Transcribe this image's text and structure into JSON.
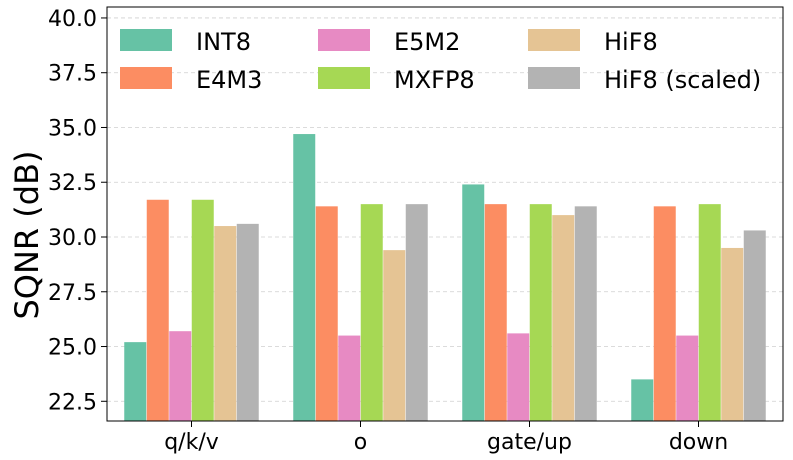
{
  "chart_data": {
    "type": "bar",
    "title": "",
    "xlabel": "",
    "ylabel": "SQNR (dB)",
    "ylim": [
      21.6,
      40.5
    ],
    "yticks": [
      22.5,
      25.0,
      27.5,
      30.0,
      32.5,
      35.0,
      37.5,
      40.0
    ],
    "ytick_labels": [
      "22.5",
      "25.0",
      "27.5",
      "30.0",
      "32.5",
      "35.0",
      "37.5",
      "40.0"
    ],
    "grid": "horizontal, dashed",
    "legend_position": "top, 3 columns",
    "categories": [
      "q/k/v",
      "o",
      "gate/up",
      "down"
    ],
    "series": [
      {
        "name": "INT8",
        "color": "#66c2a5",
        "values": [
          25.2,
          34.7,
          32.4,
          23.5
        ]
      },
      {
        "name": "E4M3",
        "color": "#fc8d62",
        "values": [
          31.7,
          31.4,
          31.5,
          31.4
        ]
      },
      {
        "name": "E5M2",
        "color": "#e78ac3",
        "values": [
          25.7,
          25.5,
          25.6,
          25.5
        ]
      },
      {
        "name": "MXFP8",
        "color": "#a6d854",
        "values": [
          31.7,
          31.5,
          31.5,
          31.5
        ]
      },
      {
        "name": "HiF8",
        "color": "#e5c494",
        "values": [
          30.5,
          29.4,
          31.0,
          29.5
        ]
      },
      {
        "name": "HiF8 (scaled)",
        "color": "#b3b3b3",
        "values": [
          30.6,
          31.5,
          31.4,
          30.3
        ]
      }
    ],
    "legend_order": [
      0,
      2,
      4,
      1,
      3,
      5
    ]
  }
}
